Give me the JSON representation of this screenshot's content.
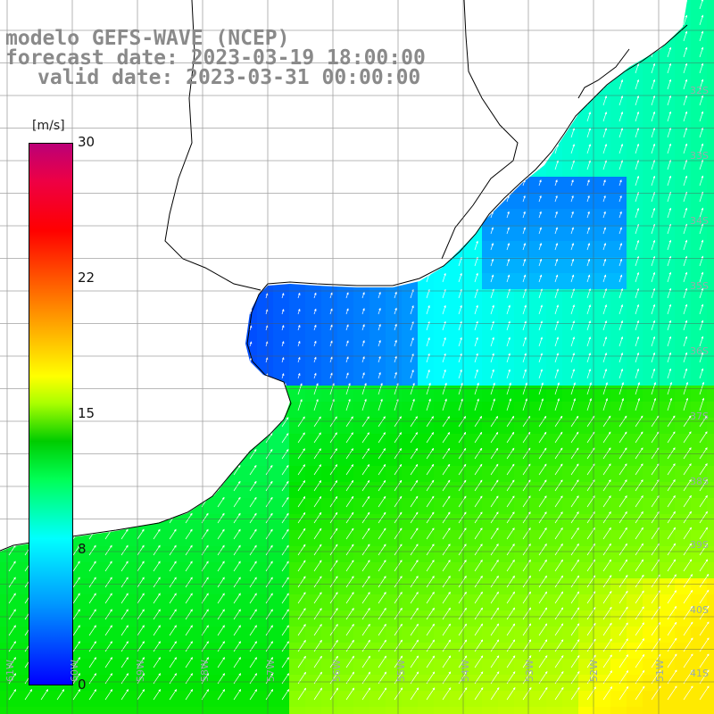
{
  "title": {
    "line1": "modelo GEFS-WAVE (NCEP)",
    "line2": "forecast date: 2023-03-19 18:00:00",
    "line3": "valid date: 2023-03-31 00:00:00"
  },
  "colorbar": {
    "unit": "[m/s]",
    "ticks": [
      "30",
      "22",
      "15",
      "8",
      "0"
    ],
    "min": 0,
    "max": 30,
    "colors": [
      "#0000ff",
      "#00aaff",
      "#00ffff",
      "#00ff66",
      "#00cc00",
      "#aaff00",
      "#ffff00",
      "#ffaa00",
      "#ff5500",
      "#ff0000",
      "#ee0044",
      "#cc0088"
    ]
  },
  "lat_labels": [
    "32S",
    "33S",
    "34S",
    "35S",
    "36S",
    "37S",
    "38S",
    "39S",
    "40S",
    "41S"
  ],
  "lon_labels": [
    "61W",
    "60W",
    "59W",
    "58W",
    "57W",
    "56W",
    "55W",
    "54W",
    "53W",
    "52W",
    "51W"
  ]
}
